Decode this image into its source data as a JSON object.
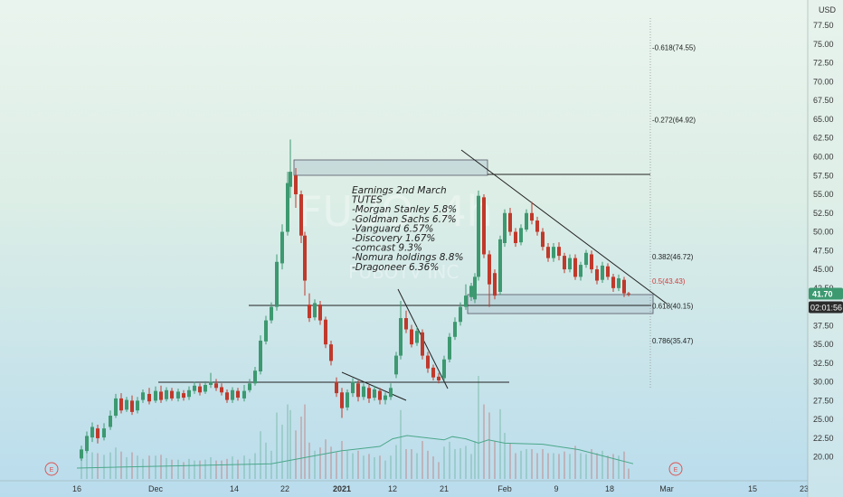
{
  "chart_data": {
    "type": "candlestick",
    "symbol_watermark": "FUBO, 4h",
    "company_watermark": "FUBOTV INC",
    "currency": "USD",
    "y_ticks": [
      20,
      22.5,
      25,
      27.5,
      30,
      32.5,
      35,
      37.5,
      40,
      42.5,
      45,
      47.5,
      50,
      52.5,
      55,
      57.5,
      60,
      62.5,
      65,
      67.5,
      70,
      72.5,
      75,
      77.5
    ],
    "y_range": [
      19,
      78
    ],
    "x_ticks": [
      {
        "label": "16",
        "x": 85
      },
      {
        "label": "Dec",
        "x": 172
      },
      {
        "label": "14",
        "x": 259
      },
      {
        "label": "22",
        "x": 315
      },
      {
        "label": "2021",
        "x": 378
      },
      {
        "label": "12",
        "x": 434
      },
      {
        "label": "21",
        "x": 491
      },
      {
        "label": "Feb",
        "x": 558
      },
      {
        "label": "9",
        "x": 615
      },
      {
        "label": "18",
        "x": 674
      },
      {
        "label": "Mar",
        "x": 737
      },
      {
        "label": "15",
        "x": 832
      },
      {
        "label": "23",
        "x": 889
      }
    ],
    "last_price": "41.70",
    "countdown": "02:01:56",
    "annotation_lines": [
      "Earnings 2nd March",
      "TUTES",
      "-Morgan Stanley 5.8%",
      "-Goldman Sachs 6.7%",
      "-Vanguard 6.57%",
      "-Discovery 1.67%",
      "-comcast 9.3%",
      "-Nomura holdings 8.8%",
      "-Dragoneer 6.36%"
    ],
    "fib_levels": [
      {
        "label": "-0.618(74.55)",
        "price": 74.55
      },
      {
        "label": "-0.272(64.92)",
        "price": 64.92
      },
      {
        "label": "0.382(46.72)",
        "price": 46.72
      },
      {
        "label": "0.5(43.43)",
        "price": 43.43,
        "color": "#d23c3c"
      },
      {
        "label": "0.618(40.15)",
        "price": 40.15
      },
      {
        "label": "0.786(35.47)",
        "price": 35.47
      }
    ],
    "candles": [
      {
        "x": 90,
        "o": 19.8,
        "c": 21.0,
        "h": 21.5,
        "l": 19.5
      },
      {
        "x": 96,
        "o": 20.8,
        "c": 22.8,
        "h": 23.4,
        "l": 20.5
      },
      {
        "x": 102,
        "o": 22.6,
        "c": 24.0,
        "h": 24.6,
        "l": 22.0
      },
      {
        "x": 108,
        "o": 23.8,
        "c": 22.5,
        "h": 24.3,
        "l": 21.8
      },
      {
        "x": 115,
        "o": 22.6,
        "c": 23.8,
        "h": 24.5,
        "l": 22.2
      },
      {
        "x": 122,
        "o": 24.0,
        "c": 25.5,
        "h": 26.2,
        "l": 23.6
      },
      {
        "x": 128,
        "o": 25.5,
        "c": 27.8,
        "h": 28.4,
        "l": 25.2
      },
      {
        "x": 134,
        "o": 27.8,
        "c": 26.2,
        "h": 28.5,
        "l": 25.8
      },
      {
        "x": 140,
        "o": 26.3,
        "c": 27.6,
        "h": 28.0,
        "l": 26.0
      },
      {
        "x": 146,
        "o": 27.5,
        "c": 26.0,
        "h": 28.2,
        "l": 25.6
      },
      {
        "x": 152,
        "o": 26.2,
        "c": 27.5,
        "h": 28.0,
        "l": 25.8
      },
      {
        "x": 158,
        "o": 27.6,
        "c": 28.6,
        "h": 29.0,
        "l": 27.2
      },
      {
        "x": 165,
        "o": 28.4,
        "c": 27.4,
        "h": 29.2,
        "l": 27.0
      },
      {
        "x": 172,
        "o": 27.5,
        "c": 28.8,
        "h": 29.4,
        "l": 27.2
      },
      {
        "x": 178,
        "o": 28.7,
        "c": 27.6,
        "h": 29.5,
        "l": 27.2
      },
      {
        "x": 184,
        "o": 27.7,
        "c": 28.9,
        "h": 29.3,
        "l": 27.4
      },
      {
        "x": 190,
        "o": 28.8,
        "c": 27.8,
        "h": 29.2,
        "l": 27.5
      },
      {
        "x": 197,
        "o": 27.8,
        "c": 28.7,
        "h": 29.1,
        "l": 27.4
      },
      {
        "x": 203,
        "o": 28.5,
        "c": 27.9,
        "h": 28.9,
        "l": 27.5
      },
      {
        "x": 209,
        "o": 28.0,
        "c": 28.9,
        "h": 29.4,
        "l": 27.6
      },
      {
        "x": 215,
        "o": 28.8,
        "c": 29.5,
        "h": 30.0,
        "l": 28.4
      },
      {
        "x": 221,
        "o": 29.4,
        "c": 28.6,
        "h": 29.8,
        "l": 28.2
      },
      {
        "x": 227,
        "o": 28.7,
        "c": 29.6,
        "h": 30.1,
        "l": 28.4
      },
      {
        "x": 233,
        "o": 29.6,
        "c": 30.0,
        "h": 31.2,
        "l": 29.2
      },
      {
        "x": 239,
        "o": 29.8,
        "c": 29.2,
        "h": 30.4,
        "l": 28.8
      },
      {
        "x": 245,
        "o": 29.3,
        "c": 28.6,
        "h": 29.8,
        "l": 28.2
      },
      {
        "x": 251,
        "o": 28.6,
        "c": 27.6,
        "h": 29.0,
        "l": 27.2
      },
      {
        "x": 257,
        "o": 27.6,
        "c": 28.9,
        "h": 29.3,
        "l": 27.2
      },
      {
        "x": 263,
        "o": 28.8,
        "c": 27.9,
        "h": 29.2,
        "l": 27.5
      },
      {
        "x": 270,
        "o": 27.8,
        "c": 28.8,
        "h": 29.6,
        "l": 27.4
      },
      {
        "x": 276,
        "o": 28.9,
        "c": 29.8,
        "h": 30.4,
        "l": 28.6
      },
      {
        "x": 282,
        "o": 29.8,
        "c": 31.5,
        "h": 32.0,
        "l": 29.5
      },
      {
        "x": 288,
        "o": 31.4,
        "c": 35.5,
        "h": 36.2,
        "l": 31.0
      },
      {
        "x": 294,
        "o": 35.4,
        "c": 38.2,
        "h": 38.8,
        "l": 35.0
      },
      {
        "x": 300,
        "o": 38.2,
        "c": 40.0,
        "h": 40.6,
        "l": 37.8
      },
      {
        "x": 306,
        "o": 40.0,
        "c": 46.0,
        "h": 47.0,
        "l": 39.5
      },
      {
        "x": 312,
        "o": 45.8,
        "c": 50.0,
        "h": 51.0,
        "l": 45.0
      },
      {
        "x": 318,
        "o": 50.0,
        "c": 56.5,
        "h": 58.0,
        "l": 49.5
      },
      {
        "x": 321,
        "o": 56.0,
        "c": 58.0,
        "h": 62.3,
        "l": 54.5
      },
      {
        "x": 327,
        "o": 57.5,
        "c": 55.0,
        "h": 58.5,
        "l": 53.2
      },
      {
        "x": 333,
        "o": 55.0,
        "c": 49.5,
        "h": 55.5,
        "l": 48.5
      },
      {
        "x": 337,
        "o": 49.5,
        "c": 43.5,
        "h": 50.0,
        "l": 41.5
      },
      {
        "x": 342,
        "o": 40.3,
        "c": 38.5,
        "h": 41.8,
        "l": 38.0
      },
      {
        "x": 348,
        "o": 38.6,
        "c": 40.5,
        "h": 41.0,
        "l": 38.2
      },
      {
        "x": 354,
        "o": 40.3,
        "c": 38.2,
        "h": 40.8,
        "l": 37.6
      },
      {
        "x": 360,
        "o": 38.3,
        "c": 35.0,
        "h": 38.7,
        "l": 34.5
      },
      {
        "x": 366,
        "o": 35.0,
        "c": 32.8,
        "h": 35.5,
        "l": 32.2
      },
      {
        "x": 372,
        "o": 30.0,
        "c": 28.5,
        "h": 30.6,
        "l": 28.0
      },
      {
        "x": 378,
        "o": 28.6,
        "c": 26.5,
        "h": 29.2,
        "l": 25.2
      },
      {
        "x": 384,
        "o": 26.6,
        "c": 28.6,
        "h": 29.0,
        "l": 26.2
      },
      {
        "x": 390,
        "o": 28.5,
        "c": 30.0,
        "h": 30.5,
        "l": 28.0
      },
      {
        "x": 396,
        "o": 29.8,
        "c": 28.0,
        "h": 30.2,
        "l": 27.4
      },
      {
        "x": 402,
        "o": 28.0,
        "c": 29.4,
        "h": 29.8,
        "l": 27.6
      },
      {
        "x": 408,
        "o": 29.2,
        "c": 27.8,
        "h": 29.6,
        "l": 27.2
      },
      {
        "x": 414,
        "o": 27.9,
        "c": 29.0,
        "h": 29.5,
        "l": 27.5
      },
      {
        "x": 420,
        "o": 28.8,
        "c": 27.6,
        "h": 29.2,
        "l": 27.0
      },
      {
        "x": 426,
        "o": 27.6,
        "c": 28.2,
        "h": 28.6,
        "l": 27.0
      },
      {
        "x": 432,
        "o": 28.0,
        "c": 29.2,
        "h": 29.8,
        "l": 27.6
      },
      {
        "x": 438,
        "o": 31.0,
        "c": 33.5,
        "h": 34.0,
        "l": 30.5
      },
      {
        "x": 443,
        "o": 33.5,
        "c": 38.5,
        "h": 40.8,
        "l": 33.0
      },
      {
        "x": 449,
        "o": 38.5,
        "c": 37.0,
        "h": 39.5,
        "l": 36.5
      },
      {
        "x": 455,
        "o": 37.0,
        "c": 35.0,
        "h": 37.6,
        "l": 34.6
      },
      {
        "x": 461,
        "o": 35.2,
        "c": 36.8,
        "h": 37.3,
        "l": 34.8
      },
      {
        "x": 467,
        "o": 36.6,
        "c": 33.5,
        "h": 37.0,
        "l": 33.0
      },
      {
        "x": 473,
        "o": 33.5,
        "c": 31.8,
        "h": 34.0,
        "l": 31.2
      },
      {
        "x": 479,
        "o": 31.9,
        "c": 30.6,
        "h": 32.3,
        "l": 30.2
      },
      {
        "x": 485,
        "o": 30.7,
        "c": 30.2,
        "h": 31.2,
        "l": 29.8
      },
      {
        "x": 491,
        "o": 30.5,
        "c": 33.0,
        "h": 33.5,
        "l": 30.2
      },
      {
        "x": 497,
        "o": 33.0,
        "c": 36.0,
        "h": 36.5,
        "l": 32.6
      },
      {
        "x": 503,
        "o": 36.0,
        "c": 38.0,
        "h": 38.6,
        "l": 35.6
      },
      {
        "x": 509,
        "o": 38.0,
        "c": 40.0,
        "h": 40.6,
        "l": 37.5
      },
      {
        "x": 515,
        "o": 40.0,
        "c": 41.5,
        "h": 43.0,
        "l": 39.6
      },
      {
        "x": 521,
        "o": 41.3,
        "c": 42.8,
        "h": 43.2,
        "l": 40.8
      },
      {
        "x": 525,
        "o": 41.0,
        "c": 44.0,
        "h": 44.5,
        "l": 40.5
      },
      {
        "x": 529,
        "o": 44.0,
        "c": 54.8,
        "h": 55.5,
        "l": 43.5
      },
      {
        "x": 535,
        "o": 54.6,
        "c": 47.0,
        "h": 55.0,
        "l": 46.5
      },
      {
        "x": 541,
        "o": 47.0,
        "c": 43.0,
        "h": 47.5,
        "l": 40.0
      },
      {
        "x": 547,
        "o": 44.5,
        "c": 41.5,
        "h": 45.0,
        "l": 41.0
      },
      {
        "x": 553,
        "o": 42.0,
        "c": 49.0,
        "h": 49.5,
        "l": 41.6
      },
      {
        "x": 558,
        "o": 48.5,
        "c": 52.5,
        "h": 53.0,
        "l": 48.0
      },
      {
        "x": 564,
        "o": 52.5,
        "c": 50.0,
        "h": 53.2,
        "l": 49.5
      },
      {
        "x": 570,
        "o": 50.0,
        "c": 48.5,
        "h": 50.5,
        "l": 48.0
      },
      {
        "x": 576,
        "o": 48.6,
        "c": 50.5,
        "h": 51.0,
        "l": 48.2
      },
      {
        "x": 582,
        "o": 50.3,
        "c": 52.5,
        "h": 53.0,
        "l": 50.0
      },
      {
        "x": 588,
        "o": 52.5,
        "c": 51.5,
        "h": 54.0,
        "l": 51.0
      },
      {
        "x": 594,
        "o": 51.5,
        "c": 50.0,
        "h": 52.0,
        "l": 49.5
      },
      {
        "x": 600,
        "o": 50.0,
        "c": 48.0,
        "h": 50.5,
        "l": 47.5
      },
      {
        "x": 606,
        "o": 48.0,
        "c": 46.5,
        "h": 48.5,
        "l": 46.0
      },
      {
        "x": 612,
        "o": 46.5,
        "c": 48.0,
        "h": 48.5,
        "l": 46.0
      },
      {
        "x": 618,
        "o": 48.0,
        "c": 46.8,
        "h": 48.6,
        "l": 46.2
      },
      {
        "x": 624,
        "o": 46.8,
        "c": 45.0,
        "h": 47.2,
        "l": 44.5
      },
      {
        "x": 630,
        "o": 45.0,
        "c": 46.5,
        "h": 47.0,
        "l": 44.6
      },
      {
        "x": 636,
        "o": 46.5,
        "c": 44.0,
        "h": 47.0,
        "l": 43.6
      },
      {
        "x": 642,
        "o": 44.0,
        "c": 45.6,
        "h": 46.0,
        "l": 43.5
      },
      {
        "x": 648,
        "o": 45.6,
        "c": 47.2,
        "h": 47.6,
        "l": 45.2
      },
      {
        "x": 654,
        "o": 47.0,
        "c": 45.0,
        "h": 47.5,
        "l": 44.5
      },
      {
        "x": 660,
        "o": 45.0,
        "c": 43.5,
        "h": 45.5,
        "l": 43.0
      },
      {
        "x": 666,
        "o": 43.6,
        "c": 45.5,
        "h": 46.0,
        "l": 43.2
      },
      {
        "x": 672,
        "o": 45.4,
        "c": 44.0,
        "h": 45.8,
        "l": 43.6
      },
      {
        "x": 678,
        "o": 44.0,
        "c": 42.5,
        "h": 44.4,
        "l": 42.0
      },
      {
        "x": 684,
        "o": 42.5,
        "c": 43.8,
        "h": 44.3,
        "l": 42.1
      },
      {
        "x": 690,
        "o": 43.6,
        "c": 41.8,
        "h": 44.0,
        "l": 41.3
      },
      {
        "x": 695,
        "o": 41.8,
        "c": 41.7,
        "h": 42.0,
        "l": 41.4
      }
    ],
    "volume_series_x": [
      85,
      300,
      378,
      420,
      434,
      450,
      491,
      500,
      515,
      529,
      540,
      558,
      600,
      640,
      700
    ],
    "volume_series_y": [
      0.1,
      0.14,
      0.26,
      0.3,
      0.37,
      0.4,
      0.36,
      0.39,
      0.37,
      0.33,
      0.36,
      0.33,
      0.32,
      0.27,
      0.14
    ]
  },
  "colors": {
    "up": "#3d9970",
    "down": "#c0392b",
    "line": "#222222",
    "volume_line": "#4aa78a",
    "price_badge": "#3d9970"
  }
}
